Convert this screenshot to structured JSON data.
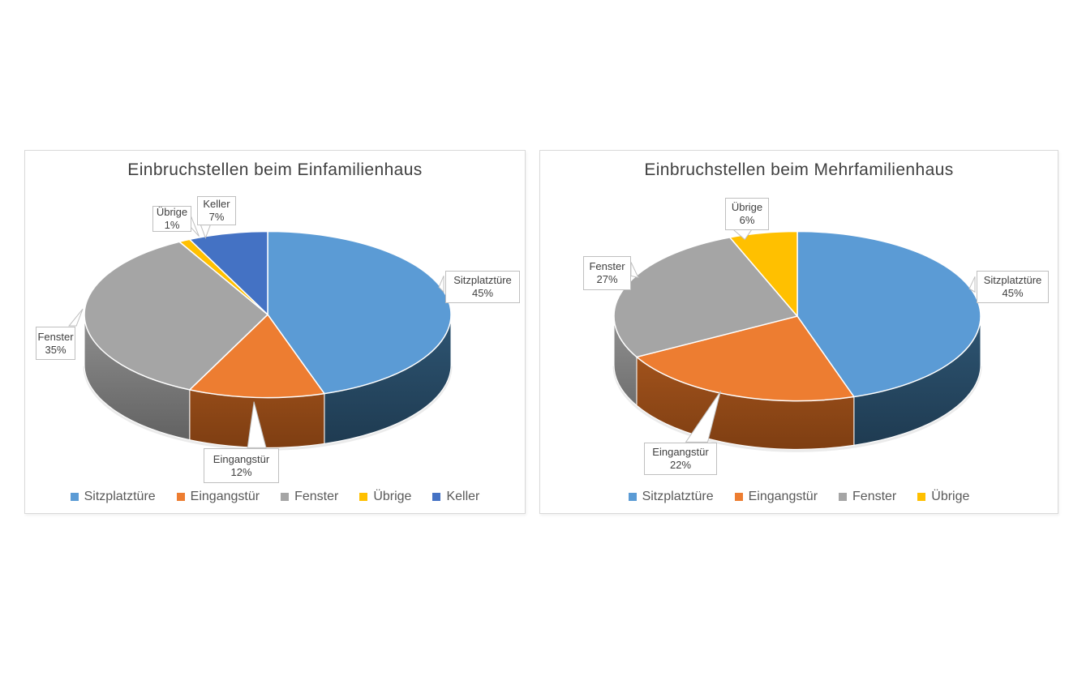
{
  "chart_data": [
    {
      "type": "pie",
      "projection": "3d",
      "title": "Einbruchstellen beim Einfamilienhaus",
      "categories": [
        "Sitzplatztüre",
        "Eingangstür",
        "Fenster",
        "Übrige",
        "Keller"
      ],
      "values": [
        45,
        12,
        35,
        1,
        7
      ],
      "unit": "%",
      "colors": [
        "#5B9BD5",
        "#ED7D31",
        "#A5A5A5",
        "#FFC000",
        "#4472C4"
      ],
      "start_angle_deg": 0,
      "direction": "clockwise",
      "legend_position": "bottom",
      "legend": [
        "Sitzplatztüre",
        "Eingangstür",
        "Fenster",
        "Übrige",
        "Keller"
      ],
      "data_labels": [
        [
          "Sitzplatztüre",
          "45%"
        ],
        [
          "Eingangstür",
          "12%"
        ],
        [
          "Fenster",
          "35%"
        ],
        [
          "Übrige",
          "1%"
        ],
        [
          "Keller",
          "7%"
        ]
      ]
    },
    {
      "type": "pie",
      "projection": "3d",
      "title": "Einbruchstellen beim Mehrfamilienhaus",
      "categories": [
        "Sitzplatztüre",
        "Eingangstür",
        "Fenster",
        "Übrige"
      ],
      "values": [
        45,
        22,
        27,
        6
      ],
      "unit": "%",
      "colors": [
        "#5B9BD5",
        "#ED7D31",
        "#A5A5A5",
        "#FFC000"
      ],
      "start_angle_deg": 0,
      "direction": "clockwise",
      "legend_position": "bottom",
      "legend": [
        "Sitzplatztüre",
        "Eingangstür",
        "Fenster",
        "Übrige"
      ],
      "data_labels": [
        [
          "Sitzplatztüre",
          "45%"
        ],
        [
          "Eingangstür",
          "22%"
        ],
        [
          "Fenster",
          "27%"
        ],
        [
          "Übrige",
          "6%"
        ]
      ]
    }
  ],
  "style_colors": {
    "title_text": "#404040",
    "label_text": "#404040",
    "legend_text": "#595959",
    "panel_border": "#D9D9D9",
    "label_border": "#BFBFBF",
    "slice_divider": "#FFFFFF"
  }
}
